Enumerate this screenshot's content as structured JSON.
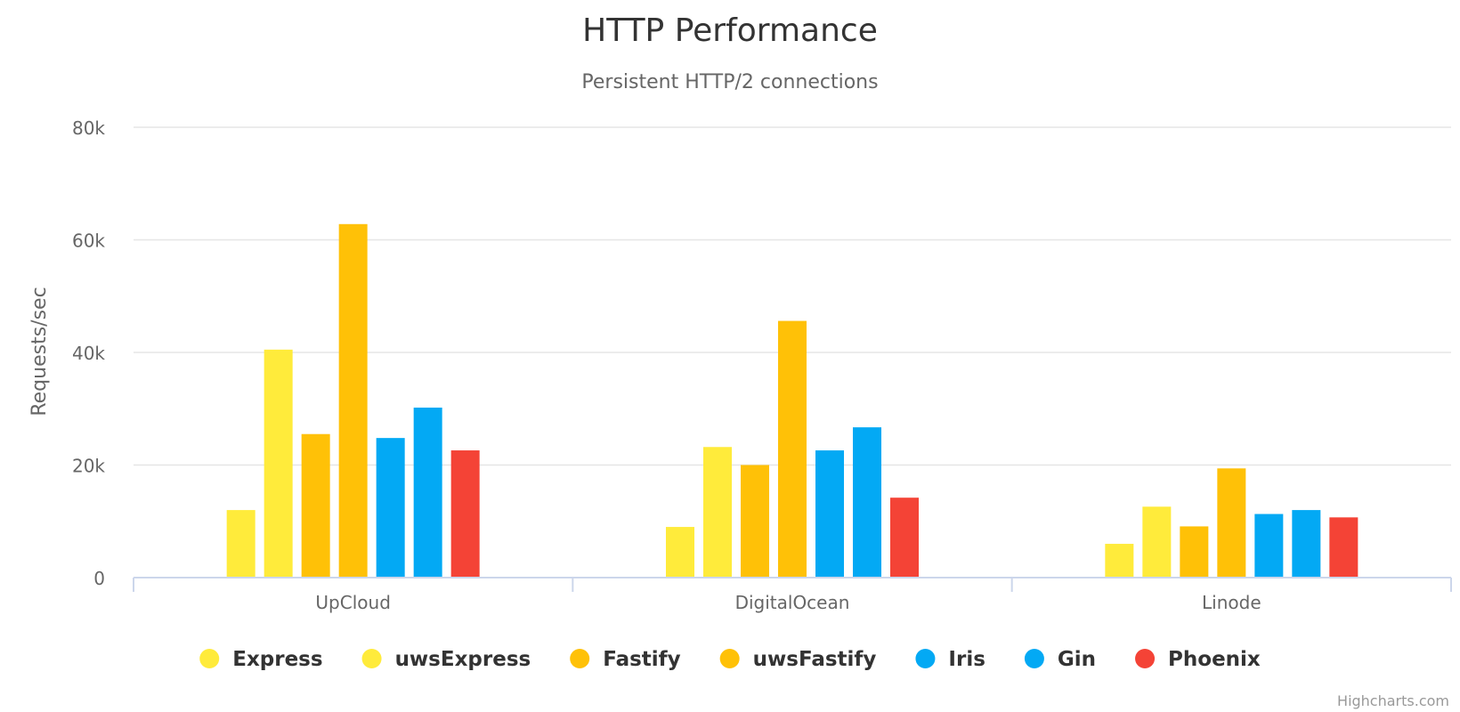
{
  "chart_data": {
    "type": "bar",
    "title": "HTTP Performance",
    "subtitle": "Persistent HTTP/2 connections",
    "xlabel": "",
    "ylabel": "Requests/sec",
    "categories": [
      "UpCloud",
      "DigitalOcean",
      "Linode"
    ],
    "ylim": [
      0,
      80000
    ],
    "yticks": [
      0,
      20000,
      40000,
      60000,
      80000
    ],
    "ytick_labels": [
      "0",
      "20k",
      "40k",
      "60k",
      "80k"
    ],
    "grid": true,
    "legend_position": "bottom-center",
    "series": [
      {
        "name": "Express",
        "color": "#FFEB3B",
        "values": [
          12000,
          9000,
          6000
        ]
      },
      {
        "name": "uwsExpress",
        "color": "#FFEB3B",
        "values": [
          40500,
          23200,
          12600
        ]
      },
      {
        "name": "Fastify",
        "color": "#FFC107",
        "values": [
          25500,
          20000,
          9100
        ]
      },
      {
        "name": "uwsFastify",
        "color": "#FFC107",
        "values": [
          62800,
          45600,
          19400
        ]
      },
      {
        "name": "Iris",
        "color": "#03A9F4",
        "values": [
          24800,
          22600,
          11300
        ]
      },
      {
        "name": "Gin",
        "color": "#03A9F4",
        "values": [
          30200,
          26700,
          12000
        ]
      },
      {
        "name": "Phoenix",
        "color": "#F44336",
        "values": [
          22600,
          14200,
          10700
        ]
      }
    ]
  },
  "credits": "Highcharts.com",
  "colors": {
    "grid": "#E6E6E6",
    "axis": "#CCD6EB",
    "text_dark": "#333333",
    "text_mid": "#666666"
  }
}
